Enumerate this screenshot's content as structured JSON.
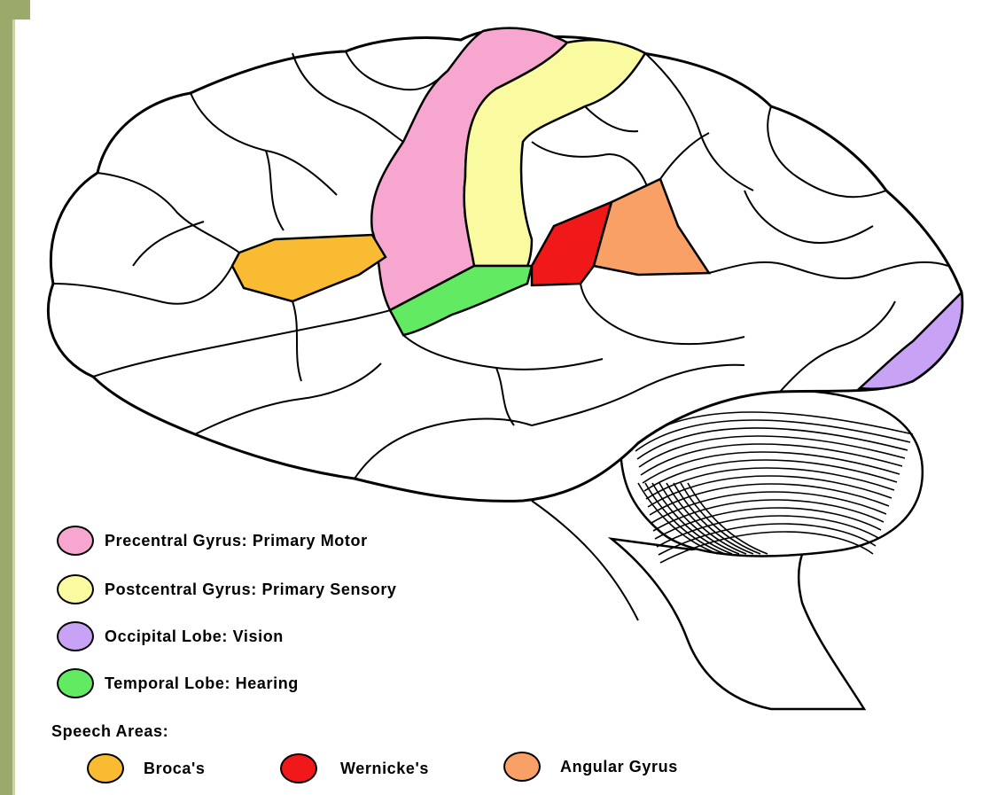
{
  "legend": {
    "items": [
      {
        "label": "Precentral Gyrus: Primary Motor",
        "color": "#f6a6cf"
      },
      {
        "label": "Postcentral Gyrus: Primary Sensory",
        "color": "#fafaa0"
      },
      {
        "label": "Occipital Lobe: Vision",
        "color": "#c8a2f4"
      },
      {
        "label": "Temporal Lobe: Hearing",
        "color": "#62ea62"
      }
    ],
    "speech_heading": "Speech Areas:",
    "speech_items": [
      {
        "label": "Broca's",
        "color": "#f8bb32"
      },
      {
        "label": "Wernicke's",
        "color": "#f01818"
      },
      {
        "label": "Angular Gyrus",
        "color": "#f8a066"
      }
    ]
  }
}
